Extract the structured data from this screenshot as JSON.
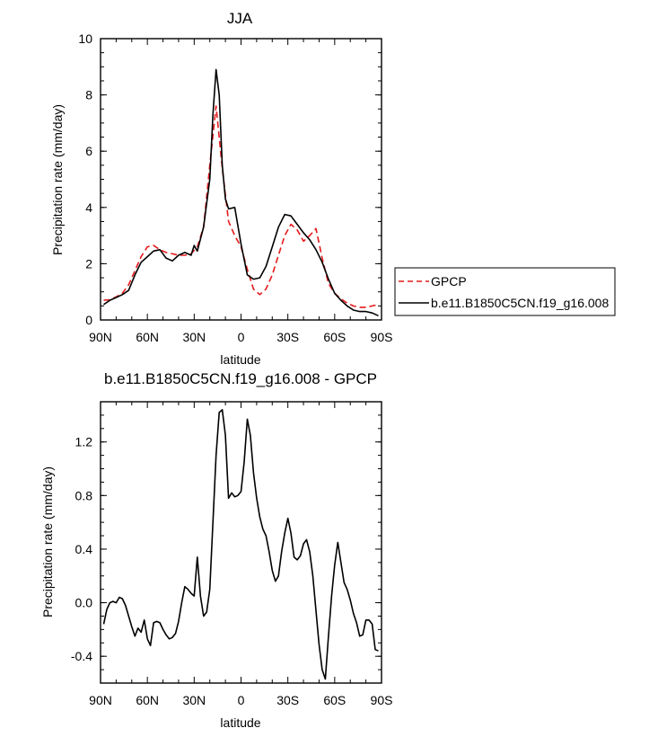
{
  "chart_data": [
    {
      "type": "line",
      "title": "JJA",
      "xlabel": "latitude",
      "ylabel": "Precipitation rate (mm/day)",
      "xlim": [
        90,
        -90
      ],
      "ylim": [
        0,
        10
      ],
      "xticks": [
        90,
        60,
        30,
        0,
        -30,
        -60,
        -90
      ],
      "xtick_labels": [
        "90N",
        "60N",
        "30N",
        "0",
        "30S",
        "60S",
        "90S"
      ],
      "yticks": [
        0,
        2,
        4,
        6,
        8,
        10
      ],
      "ytick_labels": [
        "0",
        "2",
        "4",
        "6",
        "8",
        "10"
      ],
      "legend_position": "right",
      "series": [
        {
          "name": "GPCP",
          "color": "#e41a1c",
          "dash": "dashed",
          "x": [
            88,
            84,
            80,
            76,
            72,
            68,
            64,
            60,
            56,
            52,
            48,
            44,
            40,
            36,
            32,
            28,
            24,
            20,
            16,
            12,
            8,
            4,
            0,
            -4,
            -8,
            -12,
            -16,
            -20,
            -24,
            -28,
            -32,
            -36,
            -40,
            -44,
            -48,
            -52,
            -56,
            -60,
            -64,
            -68,
            -72,
            -76,
            -80,
            -84,
            -88
          ],
          "y": [
            0.7,
            0.72,
            0.82,
            0.95,
            1.25,
            1.75,
            2.25,
            2.6,
            2.65,
            2.5,
            2.4,
            2.35,
            2.3,
            2.3,
            2.35,
            2.6,
            3.3,
            5.5,
            7.6,
            5.4,
            3.5,
            3.0,
            2.6,
            1.8,
            1.1,
            0.9,
            1.1,
            1.6,
            2.3,
            3.0,
            3.4,
            3.2,
            2.8,
            3.0,
            3.25,
            2.2,
            1.3,
            0.95,
            0.75,
            0.6,
            0.5,
            0.45,
            0.45,
            0.5,
            0.55
          ]
        },
        {
          "name": "b.e11.B1850C5CN.f19_g16.008",
          "color": "#000000",
          "dash": "solid",
          "x": [
            88,
            84,
            80,
            76,
            72,
            68,
            64,
            60,
            56,
            52,
            48,
            44,
            40,
            36,
            32,
            30,
            28,
            24,
            20,
            18,
            16,
            14,
            12,
            10,
            8,
            4,
            0,
            -4,
            -8,
            -12,
            -16,
            -20,
            -24,
            -28,
            -32,
            -36,
            -40,
            -44,
            -48,
            -52,
            -56,
            -60,
            -64,
            -68,
            -72,
            -76,
            -80,
            -84,
            -88
          ],
          "y": [
            0.55,
            0.7,
            0.8,
            0.9,
            1.05,
            1.6,
            2.05,
            2.25,
            2.45,
            2.5,
            2.2,
            2.1,
            2.3,
            2.4,
            2.3,
            2.65,
            2.45,
            3.3,
            5.0,
            7.3,
            8.9,
            8.0,
            5.5,
            4.3,
            3.95,
            4.0,
            2.7,
            1.6,
            1.45,
            1.5,
            1.9,
            2.6,
            3.3,
            3.75,
            3.7,
            3.4,
            3.1,
            2.85,
            2.5,
            2.05,
            1.45,
            0.95,
            0.7,
            0.5,
            0.35,
            0.3,
            0.3,
            0.25,
            0.15
          ]
        }
      ]
    },
    {
      "type": "line",
      "title": "b.e11.B1850C5CN.f19_g16.008 - GPCP",
      "xlabel": "latitude",
      "ylabel": "Precipitation rate (mm/day)",
      "xlim": [
        90,
        -90
      ],
      "ylim": [
        -0.6,
        1.5
      ],
      "xticks": [
        90,
        60,
        30,
        0,
        -30,
        -60,
        -90
      ],
      "xtick_labels": [
        "90N",
        "60N",
        "30N",
        "0",
        "30S",
        "60S",
        "90S"
      ],
      "yticks": [
        -0.4,
        0.0,
        0.4,
        0.8,
        1.2
      ],
      "ytick_labels": [
        "-0.4",
        "0.0",
        "0.4",
        "0.8",
        "1.2"
      ],
      "series": [
        {
          "name": "",
          "color": "#000000",
          "dash": "solid",
          "x": [
            88,
            86,
            84,
            82,
            80,
            78,
            76,
            74,
            72,
            70,
            68,
            66,
            64,
            62,
            60,
            58,
            56,
            54,
            52,
            50,
            48,
            46,
            44,
            42,
            40,
            38,
            36,
            34,
            32,
            30,
            28,
            26,
            24,
            22,
            20,
            18,
            16,
            14,
            12,
            10,
            8,
            6,
            4,
            2,
            0,
            -2,
            -4,
            -6,
            -8,
            -10,
            -12,
            -14,
            -16,
            -18,
            -20,
            -22,
            -24,
            -26,
            -28,
            -30,
            -32,
            -34,
            -36,
            -38,
            -40,
            -42,
            -44,
            -46,
            -48,
            -50,
            -52,
            -54,
            -56,
            -58,
            -60,
            -62,
            -64,
            -66,
            -68,
            -70,
            -72,
            -74,
            -76,
            -78,
            -80,
            -82,
            -84,
            -86,
            -88
          ],
          "y": [
            -0.16,
            -0.05,
            0.0,
            0.01,
            0.0,
            0.04,
            0.03,
            -0.02,
            -0.1,
            -0.18,
            -0.25,
            -0.19,
            -0.22,
            -0.13,
            -0.27,
            -0.32,
            -0.15,
            -0.14,
            -0.15,
            -0.2,
            -0.24,
            -0.27,
            -0.26,
            -0.23,
            -0.14,
            0.0,
            0.12,
            0.1,
            0.07,
            0.05,
            0.34,
            0.05,
            -0.1,
            -0.07,
            0.1,
            0.6,
            1.1,
            1.42,
            1.44,
            1.25,
            0.78,
            0.82,
            0.79,
            0.8,
            0.83,
            1.05,
            1.37,
            1.25,
            0.97,
            0.78,
            0.64,
            0.55,
            0.5,
            0.38,
            0.24,
            0.16,
            0.2,
            0.38,
            0.52,
            0.63,
            0.52,
            0.34,
            0.32,
            0.35,
            0.44,
            0.47,
            0.38,
            0.2,
            -0.06,
            -0.31,
            -0.5,
            -0.57,
            -0.25,
            0.05,
            0.28,
            0.45,
            0.3,
            0.15,
            0.1,
            0.02,
            -0.08,
            -0.15,
            -0.25,
            -0.24,
            -0.13,
            -0.13,
            -0.16,
            -0.35,
            -0.36
          ]
        }
      ]
    }
  ]
}
